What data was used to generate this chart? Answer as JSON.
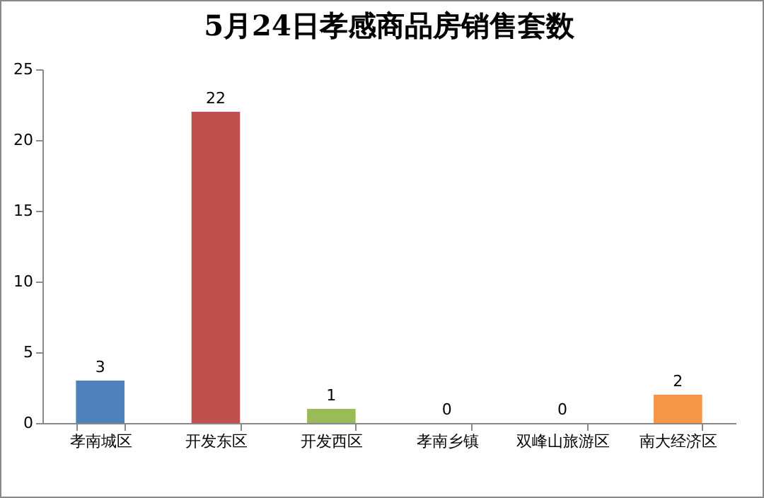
{
  "chart_data": {
    "type": "bar",
    "title": "5月24日孝感商品房销售套数",
    "categories": [
      "孝南城区",
      "开发东区",
      "开发西区",
      "孝南乡镇",
      "双峰山旅游区",
      "南大经济区"
    ],
    "values": [
      3,
      22,
      1,
      0,
      0,
      2
    ],
    "colors": [
      "#4f81bd",
      "#c0504d",
      "#9bbb59",
      "#8064a2",
      "#4bacc6",
      "#f79646"
    ],
    "ylim": [
      0,
      25
    ],
    "yticks": [
      0,
      5,
      10,
      15,
      20,
      25
    ],
    "grid": false,
    "data_labels": true
  }
}
